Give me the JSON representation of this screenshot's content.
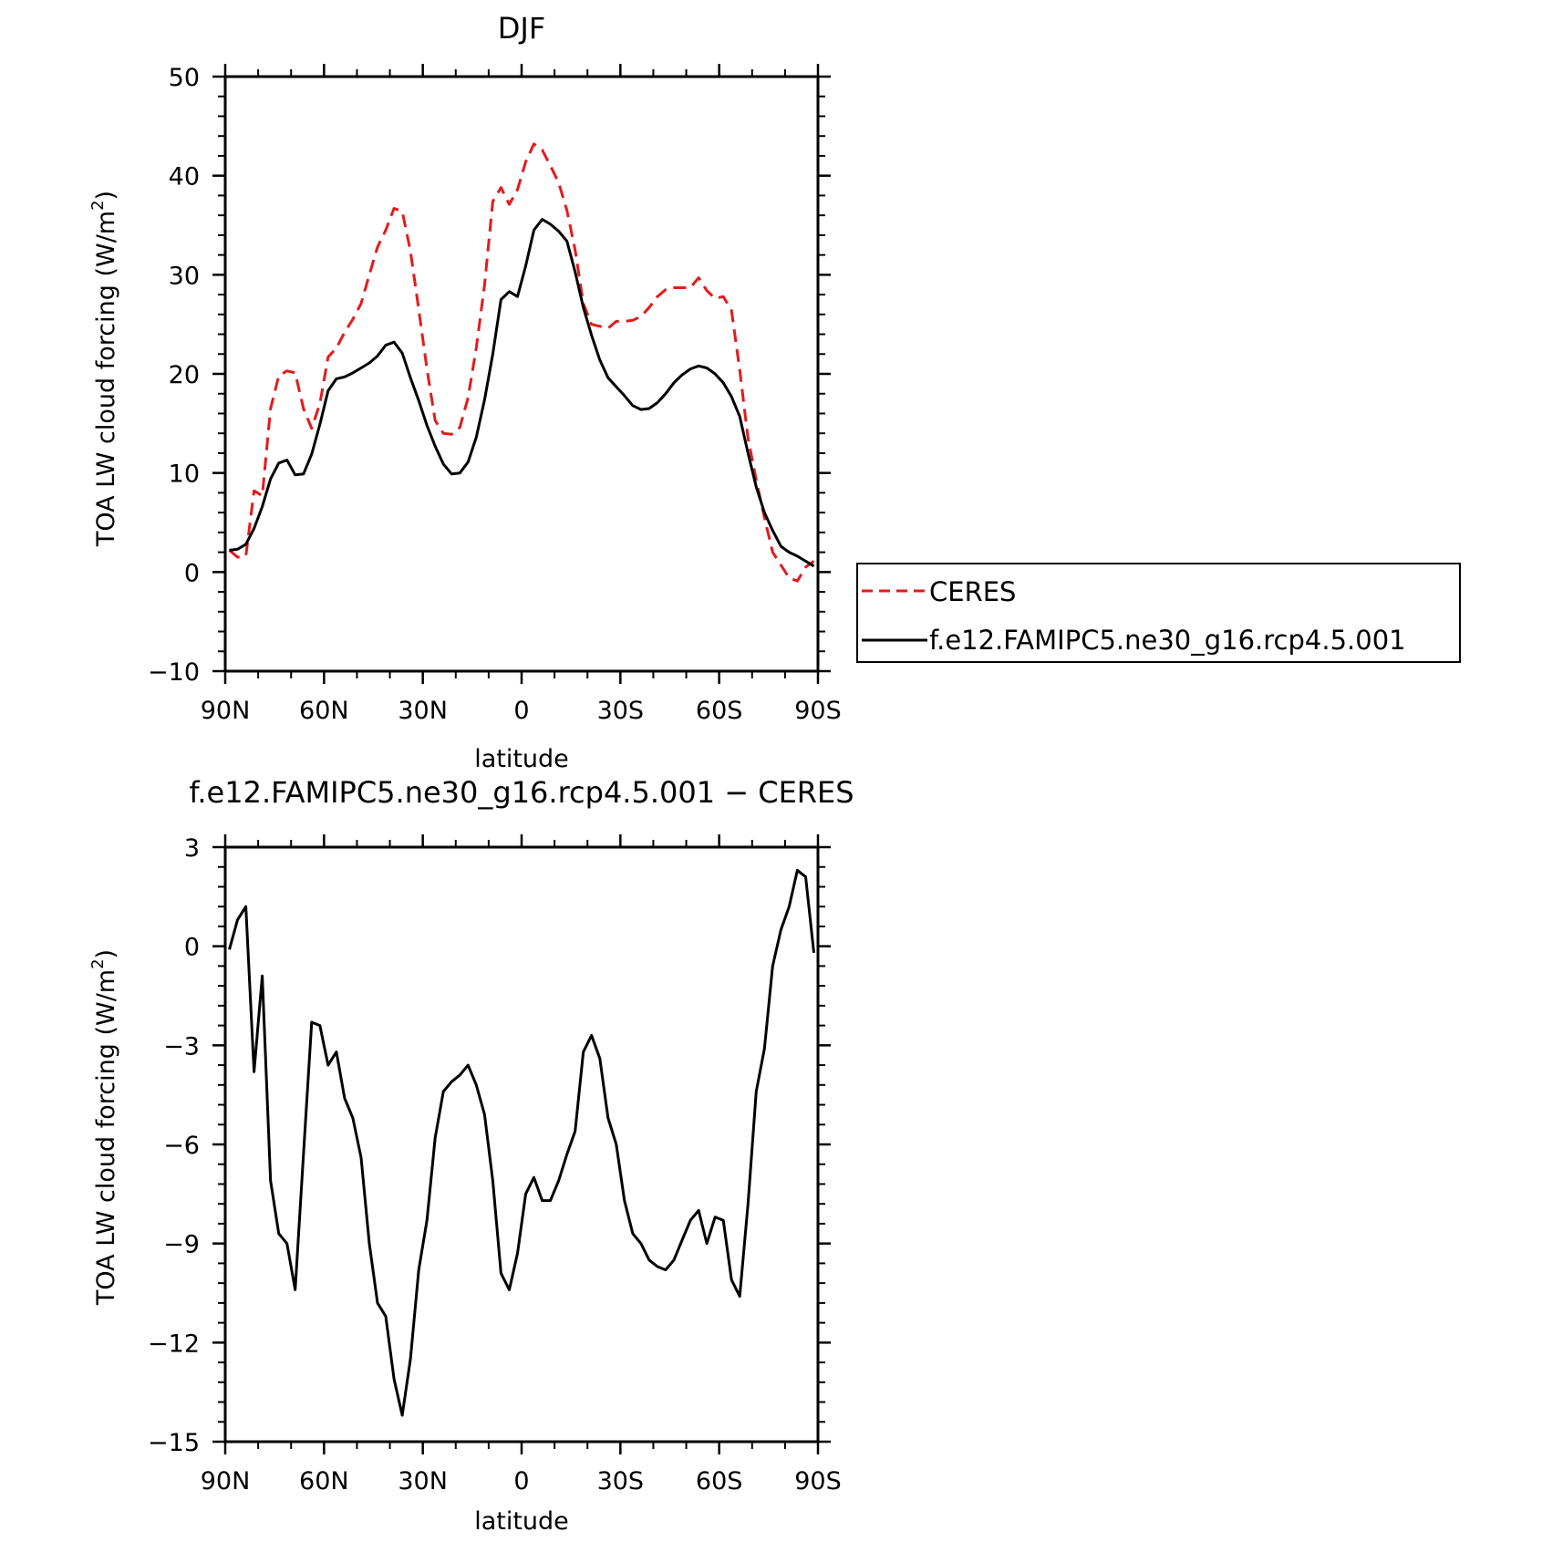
{
  "chart_data": [
    {
      "type": "line",
      "title": "DJF",
      "xlabel": "latitude",
      "ylabel": "TOA LW cloud forcing (W/m²)",
      "ylabel_parts": [
        "TOA LW cloud forcing (W/m",
        "2",
        ")"
      ],
      "xlim": [
        -90,
        90
      ],
      "ylim": [
        -10,
        50
      ],
      "x_tick_values": [
        -90,
        -60,
        -30,
        0,
        30,
        60,
        90
      ],
      "x_tick_labels": [
        "90N",
        "60N",
        "30N",
        "0",
        "30S",
        "60S",
        "90S"
      ],
      "y_tick_values": [
        -10,
        0,
        10,
        20,
        30,
        40,
        50
      ],
      "y_tick_labels": [
        "−10",
        "0",
        "10",
        "20",
        "30",
        "40",
        "50"
      ],
      "grid": false,
      "legend": "right",
      "series": [
        {
          "name": "CERES",
          "color": "#e41a1c",
          "dash": "dashed",
          "x": [
            -88.75,
            -86.25,
            -83.75,
            -81.25,
            -78.75,
            -76.25,
            -73.75,
            -71.25,
            -68.75,
            -66.25,
            -63.75,
            -61.25,
            -58.75,
            -56.25,
            -53.75,
            -51.25,
            -48.75,
            -46.25,
            -43.75,
            -41.25,
            -38.75,
            -36.25,
            -33.75,
            -31.25,
            -28.75,
            -26.25,
            -23.75,
            -21.25,
            -18.75,
            -16.25,
            -13.75,
            -11.25,
            -8.75,
            -6.25,
            -3.75,
            -1.25,
            1.25,
            3.75,
            6.25,
            8.75,
            11.25,
            13.75,
            16.25,
            18.75,
            21.25,
            23.75,
            26.25,
            28.75,
            31.25,
            33.75,
            36.25,
            38.75,
            41.25,
            43.75,
            46.25,
            48.75,
            51.25,
            53.75,
            56.25,
            58.75,
            61.25,
            63.75,
            66.25,
            68.75,
            71.25,
            73.75,
            76.25,
            78.75,
            81.25,
            83.75,
            86.25,
            88.75
          ],
          "y": [
            2.2,
            1.5,
            1.6,
            8.2,
            7.7,
            16.5,
            19.8,
            20.3,
            20.1,
            16.5,
            14.5,
            17.0,
            21.7,
            22.6,
            24.2,
            25.5,
            27.1,
            30.0,
            32.8,
            34.5,
            36.7,
            36.4,
            32.4,
            26.5,
            20.5,
            15.3,
            14.0,
            13.9,
            14.6,
            17.6,
            22.6,
            29.0,
            37.4,
            38.8,
            37.1,
            38.6,
            41.4,
            43.2,
            42.6,
            41.0,
            39.3,
            36.5,
            32.5,
            27.1,
            25.0,
            24.8,
            24.6,
            25.3,
            25.3,
            25.4,
            25.8,
            26.7,
            27.8,
            28.5,
            28.7,
            28.7,
            28.7,
            29.7,
            28.4,
            27.6,
            27.8,
            26.4,
            20.4,
            13.5,
            9.3,
            5.5,
            2.0,
            0.7,
            -0.6,
            -0.9,
            0.5,
            1.1
          ]
        },
        {
          "name": "f.e12.FAMIPC5.ne30_g16.rcp4.5.001",
          "color": "#000000",
          "dash": "solid",
          "x": [
            -88.75,
            -86.25,
            -83.75,
            -81.25,
            -78.75,
            -76.25,
            -73.75,
            -71.25,
            -68.75,
            -66.25,
            -63.75,
            -61.25,
            -58.75,
            -56.25,
            -53.75,
            -51.25,
            -48.75,
            -46.25,
            -43.75,
            -41.25,
            -38.75,
            -36.25,
            -33.75,
            -31.25,
            -28.75,
            -26.25,
            -23.75,
            -21.25,
            -18.75,
            -16.25,
            -13.75,
            -11.25,
            -8.75,
            -6.25,
            -3.75,
            -1.25,
            1.25,
            3.75,
            6.25,
            8.75,
            11.25,
            13.75,
            16.25,
            18.75,
            21.25,
            23.75,
            26.25,
            28.75,
            31.25,
            33.75,
            36.25,
            38.75,
            41.25,
            43.75,
            46.25,
            48.75,
            51.25,
            53.75,
            56.25,
            58.75,
            61.25,
            63.75,
            66.25,
            68.75,
            71.25,
            73.75,
            76.25,
            78.75,
            81.25,
            83.75,
            86.25,
            88.75
          ],
          "y": [
            2.2,
            2.3,
            2.8,
            4.4,
            6.6,
            9.4,
            11.0,
            11.3,
            9.8,
            9.9,
            11.9,
            14.9,
            18.3,
            19.5,
            19.7,
            20.1,
            20.6,
            21.1,
            21.8,
            22.9,
            23.2,
            22.1,
            19.6,
            17.3,
            14.8,
            12.7,
            10.9,
            9.9,
            10.0,
            11.1,
            13.6,
            17.4,
            22.0,
            27.5,
            28.3,
            27.8,
            30.9,
            34.5,
            35.6,
            35.1,
            34.4,
            33.4,
            30.3,
            26.7,
            23.9,
            21.4,
            19.6,
            18.7,
            17.8,
            16.8,
            16.4,
            16.5,
            17.1,
            18.0,
            19.1,
            19.9,
            20.5,
            20.8,
            20.6,
            20.0,
            19.1,
            17.7,
            15.7,
            12.0,
            8.6,
            6.0,
            4.2,
            2.6,
            2.0,
            1.6,
            1.1,
            0.6
          ]
        }
      ]
    },
    {
      "type": "line",
      "title": "f.e12.FAMIPC5.ne30_g16.rcp4.5.001 − CERES",
      "xlabel": "latitude",
      "ylabel": "TOA LW cloud forcing (W/m²)",
      "ylabel_parts": [
        "TOA LW cloud forcing (W/m",
        "2",
        ")"
      ],
      "xlim": [
        -90,
        90
      ],
      "ylim": [
        -15,
        3
      ],
      "x_tick_values": [
        -90,
        -60,
        -30,
        0,
        30,
        60,
        90
      ],
      "x_tick_labels": [
        "90N",
        "60N",
        "30N",
        "0",
        "30S",
        "60S",
        "90S"
      ],
      "y_tick_values": [
        -15,
        -12,
        -9,
        -6,
        -3,
        0,
        3
      ],
      "y_tick_labels": [
        "−15",
        "−12",
        "−9",
        "−6",
        "−3",
        "0",
        "3"
      ],
      "grid": false,
      "legend": "none",
      "series": [
        {
          "color": "#000000",
          "dash": "solid",
          "x": [
            -88.75,
            -86.25,
            -83.75,
            -81.25,
            -78.75,
            -76.25,
            -73.75,
            -71.25,
            -68.75,
            -66.25,
            -63.75,
            -61.25,
            -58.75,
            -56.25,
            -53.75,
            -51.25,
            -48.75,
            -46.25,
            -43.75,
            -41.25,
            -38.75,
            -36.25,
            -33.75,
            -31.25,
            -28.75,
            -26.25,
            -23.75,
            -21.25,
            -18.75,
            -16.25,
            -13.75,
            -11.25,
            -8.75,
            -6.25,
            -3.75,
            -1.25,
            1.25,
            3.75,
            6.25,
            8.75,
            11.25,
            13.75,
            16.25,
            18.75,
            21.25,
            23.75,
            26.25,
            28.75,
            31.25,
            33.75,
            36.25,
            38.75,
            41.25,
            43.75,
            46.25,
            48.75,
            51.25,
            53.75,
            56.25,
            58.75,
            61.25,
            63.75,
            66.25,
            68.75,
            71.25,
            73.75,
            76.25,
            78.75,
            81.25,
            83.75,
            86.25,
            88.75
          ],
          "y": [
            -0.1,
            0.8,
            1.2,
            -3.8,
            -0.9,
            -7.1,
            -8.7,
            -9.0,
            -10.4,
            -6.3,
            -2.3,
            -2.4,
            -3.6,
            -3.2,
            -4.6,
            -5.2,
            -6.4,
            -9.0,
            -10.8,
            -11.2,
            -13.1,
            -14.2,
            -12.5,
            -9.8,
            -8.3,
            -5.8,
            -4.4,
            -4.1,
            -3.9,
            -3.6,
            -4.2,
            -5.1,
            -7.1,
            -9.9,
            -10.4,
            -9.3,
            -7.5,
            -7.0,
            -7.7,
            -7.7,
            -7.1,
            -6.3,
            -5.6,
            -3.2,
            -2.7,
            -3.4,
            -5.2,
            -6.0,
            -7.7,
            -8.7,
            -9.0,
            -9.5,
            -9.7,
            -9.8,
            -9.5,
            -8.9,
            -8.3,
            -8.0,
            -9.0,
            -8.2,
            -8.3,
            -10.1,
            -10.6,
            -7.8,
            -4.4,
            -3.1,
            -0.6,
            0.5,
            1.2,
            2.3,
            2.1,
            -0.2
          ]
        }
      ]
    }
  ]
}
